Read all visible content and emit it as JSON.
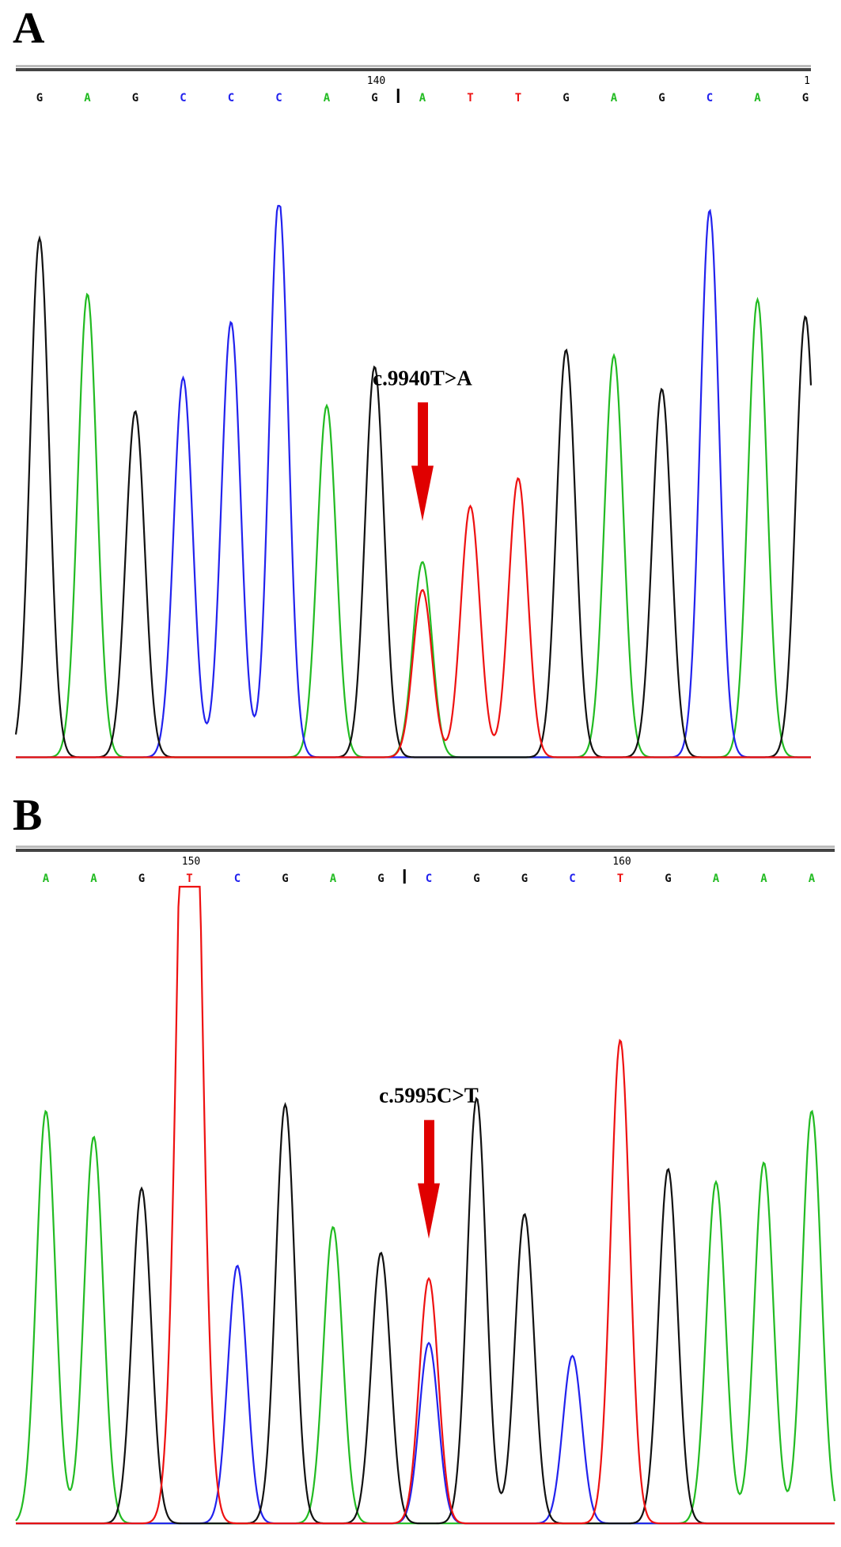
{
  "chart_data": [
    {
      "type": "line",
      "panel_label": "A",
      "position_markers": [
        {
          "label": "140",
          "after_index": 7
        },
        {
          "label": "1",
          "after_index": 16
        }
      ],
      "bases": [
        "G",
        "A",
        "G",
        "C",
        "C",
        "C",
        "A",
        "G",
        "A",
        "T",
        "T",
        "G",
        "A",
        "G",
        "C",
        "A",
        "G"
      ],
      "cursor_after_index": 7,
      "peaks": [
        {
          "base": "G",
          "height": 0.93
        },
        {
          "base": "A",
          "height": 0.83
        },
        {
          "base": "G",
          "height": 0.62
        },
        {
          "base": "C",
          "height": 0.68
        },
        {
          "base": "C",
          "height": 0.78
        },
        {
          "base": "C",
          "height": 1.0
        },
        {
          "base": "A",
          "height": 0.63
        },
        {
          "base": "G",
          "height": 0.7
        },
        {
          "base": "A",
          "height": 0.35,
          "secondary": {
            "base": "T",
            "height": 0.3
          }
        },
        {
          "base": "T",
          "height": 0.45
        },
        {
          "base": "T",
          "height": 0.5
        },
        {
          "base": "G",
          "height": 0.73
        },
        {
          "base": "A",
          "height": 0.72
        },
        {
          "base": "G",
          "height": 0.66
        },
        {
          "base": "C",
          "height": 0.98
        },
        {
          "base": "A",
          "height": 0.82
        },
        {
          "base": "G",
          "height": 0.79
        }
      ],
      "annotation": {
        "text": "c.9940T>A",
        "peak_index": 8
      }
    },
    {
      "type": "line",
      "panel_label": "B",
      "position_markers": [
        {
          "label": "150",
          "after_index": 3
        },
        {
          "label": "160",
          "after_index": 12
        }
      ],
      "bases": [
        "A",
        "A",
        "G",
        "T",
        "C",
        "G",
        "A",
        "G",
        "C",
        "G",
        "G",
        "C",
        "T",
        "G",
        "A",
        "A",
        "A"
      ],
      "cursor_after_index": 7,
      "peaks": [
        {
          "base": "A",
          "height": 0.64
        },
        {
          "base": "A",
          "height": 0.6
        },
        {
          "base": "G",
          "height": 0.52
        },
        {
          "base": "T",
          "height": 1.0,
          "clipped": true
        },
        {
          "base": "C",
          "height": 0.4
        },
        {
          "base": "G",
          "height": 0.65
        },
        {
          "base": "A",
          "height": 0.46
        },
        {
          "base": "G",
          "height": 0.42
        },
        {
          "base": "C",
          "height": 0.28,
          "secondary": {
            "base": "T",
            "height": 0.38
          }
        },
        {
          "base": "G",
          "height": 0.66
        },
        {
          "base": "G",
          "height": 0.48
        },
        {
          "base": "C",
          "height": 0.26
        },
        {
          "base": "T",
          "height": 0.75
        },
        {
          "base": "G",
          "height": 0.55
        },
        {
          "base": "A",
          "height": 0.53
        },
        {
          "base": "A",
          "height": 0.56
        },
        {
          "base": "A",
          "height": 0.64
        }
      ],
      "annotation": {
        "text": "c.5995C>T",
        "peak_index": 8
      }
    }
  ],
  "colors": {
    "A": "#22bb22",
    "C": "#2222ee",
    "G": "#111111",
    "T": "#ee1111",
    "arrow": "#e00000"
  }
}
